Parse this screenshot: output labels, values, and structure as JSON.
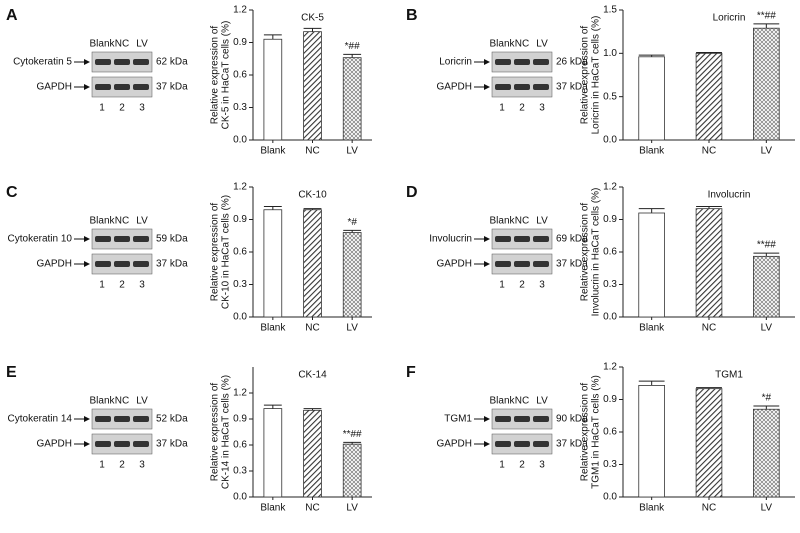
{
  "panels": [
    {
      "label": "A",
      "blot": {
        "lanes": [
          "Blank",
          "NC",
          "LV"
        ],
        "bands": [
          {
            "name": "Cytokeratin 5",
            "size": "62 kDa"
          },
          {
            "name": "GAPDH",
            "size": "37 kDa"
          }
        ],
        "lane_numbers": [
          "1",
          "2",
          "3"
        ]
      }
    },
    {
      "label": "B",
      "blot": {
        "lanes": [
          "Blank",
          "NC",
          "LV"
        ],
        "bands": [
          {
            "name": "Loricrin",
            "size": "26 kDa"
          },
          {
            "name": "GAPDH",
            "size": "37 kDa"
          }
        ],
        "lane_numbers": [
          "1",
          "2",
          "3"
        ]
      }
    },
    {
      "label": "C",
      "blot": {
        "lanes": [
          "Blank",
          "NC",
          "LV"
        ],
        "bands": [
          {
            "name": "Cytokeratin 10",
            "size": "59 kDa"
          },
          {
            "name": "GAPDH",
            "size": "37 kDa"
          }
        ],
        "lane_numbers": [
          "1",
          "2",
          "3"
        ]
      }
    },
    {
      "label": "D",
      "blot": {
        "lanes": [
          "Blank",
          "NC",
          "LV"
        ],
        "bands": [
          {
            "name": "Involucrin",
            "size": "69 kDa"
          },
          {
            "name": "GAPDH",
            "size": "37 kDa"
          }
        ],
        "lane_numbers": [
          "1",
          "2",
          "3"
        ]
      }
    },
    {
      "label": "E",
      "blot": {
        "lanes": [
          "Blank",
          "NC",
          "LV"
        ],
        "bands": [
          {
            "name": "Cytokeratin 14",
            "size": "52 kDa"
          },
          {
            "name": "GAPDH",
            "size": "37 kDa"
          }
        ],
        "lane_numbers": [
          "1",
          "2",
          "3"
        ]
      }
    },
    {
      "label": "F",
      "blot": {
        "lanes": [
          "Blank",
          "NC",
          "LV"
        ],
        "bands": [
          {
            "name": "TGM1",
            "size": "90 kDa"
          },
          {
            "name": "GAPDH",
            "size": "37 kDa"
          }
        ],
        "lane_numbers": [
          "1",
          "2",
          "3"
        ]
      }
    }
  ],
  "chart_data": [
    {
      "type": "bar",
      "title": "CK-5",
      "ylabel": [
        "Relative expression of",
        "CK-5 in HaCaT cells (%)"
      ],
      "categories": [
        "Blank",
        "NC",
        "LV"
      ],
      "values": [
        0.93,
        1.0,
        0.76
      ],
      "errors": [
        0.04,
        0.03,
        0.03
      ],
      "annotation": "*##",
      "ylim": [
        0,
        1.2
      ],
      "yticks": [
        {
          "value": 0,
          "label": "0.0"
        },
        0.3,
        0.6,
        0.9,
        1.2
      ]
    },
    {
      "type": "bar",
      "title": "Loricrin",
      "ylabel": [
        "Relative expression of",
        "Loricrin in HaCaT cells (%)"
      ],
      "categories": [
        "Blank",
        "NC",
        "LV"
      ],
      "values": [
        0.96,
        1.0,
        1.29
      ],
      "errors": [
        0.02,
        0.01,
        0.05
      ],
      "annotation": "**##",
      "ylim": [
        0,
        1.5
      ],
      "yticks": [
        {
          "value": 0,
          "label": "0.0"
        },
        0.5,
        {
          "value": 1,
          "label": "1.0"
        },
        1.5
      ]
    },
    {
      "type": "bar",
      "title": "CK-10",
      "ylabel": [
        "Relative expression of",
        "CK-10 in HaCaT cells (%)"
      ],
      "categories": [
        "Blank",
        "NC",
        "LV"
      ],
      "values": [
        0.99,
        0.99,
        0.78
      ],
      "errors": [
        0.03,
        0.01,
        0.02
      ],
      "annotation": "*#",
      "ylim": [
        0,
        1.2
      ],
      "yticks": [
        {
          "value": 0,
          "label": "0.0"
        },
        0.3,
        0.6,
        0.9,
        1.2
      ]
    },
    {
      "type": "bar",
      "title": "Involucrin",
      "ylabel": [
        "Relative expression of",
        "Involucrin in HaCaT cells (%)"
      ],
      "categories": [
        "Blank",
        "NC",
        "LV"
      ],
      "values": [
        0.96,
        1.0,
        0.56
      ],
      "errors": [
        0.04,
        0.02,
        0.03
      ],
      "annotation": "**##",
      "ylim": [
        0,
        1.2
      ],
      "yticks": [
        {
          "value": 0,
          "label": "0.0"
        },
        0.3,
        0.6,
        0.9,
        1.2
      ]
    },
    {
      "type": "bar",
      "title": "CK-14",
      "ylabel": [
        "Relative expression of",
        "CK-14 in HaCaT cells (%)"
      ],
      "categories": [
        "Blank",
        "NC",
        "LV"
      ],
      "values": [
        1.02,
        1.0,
        0.61
      ],
      "errors": [
        0.04,
        0.02,
        0.02
      ],
      "annotation": "**##",
      "ylim": [
        0,
        1.5
      ],
      "yticks": [
        {
          "value": 0,
          "label": "0.0"
        },
        0.3,
        0.6,
        0.9,
        1.2
      ]
    },
    {
      "type": "bar",
      "title": "TGM1",
      "ylabel": [
        "Relative expression of",
        "TGM1 in HaCaT cells (%)"
      ],
      "categories": [
        "Blank",
        "NC",
        "LV"
      ],
      "values": [
        1.03,
        1.0,
        0.81
      ],
      "errors": [
        0.04,
        0.01,
        0.03
      ],
      "annotation": "*#",
      "ylim": [
        0,
        1.2
      ],
      "yticks": [
        {
          "value": 0,
          "label": "0.0"
        },
        0.3,
        0.6,
        0.9,
        1.2
      ]
    }
  ]
}
